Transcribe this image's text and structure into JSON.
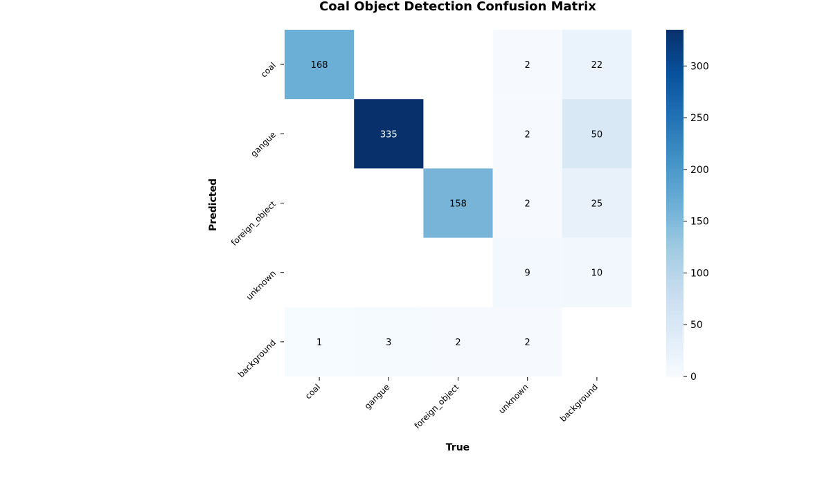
{
  "chart_data": {
    "type": "heatmap",
    "title": "Coal Object Detection Confusion Matrix",
    "xlabel": "True",
    "ylabel": "Predicted",
    "x_categories": [
      "coal",
      "gangue",
      "foreign_object",
      "unknown",
      "background"
    ],
    "y_categories": [
      "coal",
      "gangue",
      "foreign_object",
      "unknown",
      "background"
    ],
    "values": [
      [
        168,
        null,
        null,
        2,
        22
      ],
      [
        null,
        335,
        null,
        2,
        50
      ],
      [
        null,
        null,
        158,
        2,
        25
      ],
      [
        null,
        null,
        null,
        9,
        10
      ],
      [
        1,
        3,
        2,
        2,
        null
      ]
    ],
    "colormap": "Blues",
    "colorbar": {
      "min": 0,
      "max": 335,
      "ticks": [
        0,
        50,
        100,
        150,
        200,
        250,
        300
      ]
    },
    "colors": {
      "cmap_low": "#f7fbff",
      "cmap_high": "#08306b",
      "annotation_dark": "#000000",
      "annotation_light": "#ffffff"
    }
  }
}
